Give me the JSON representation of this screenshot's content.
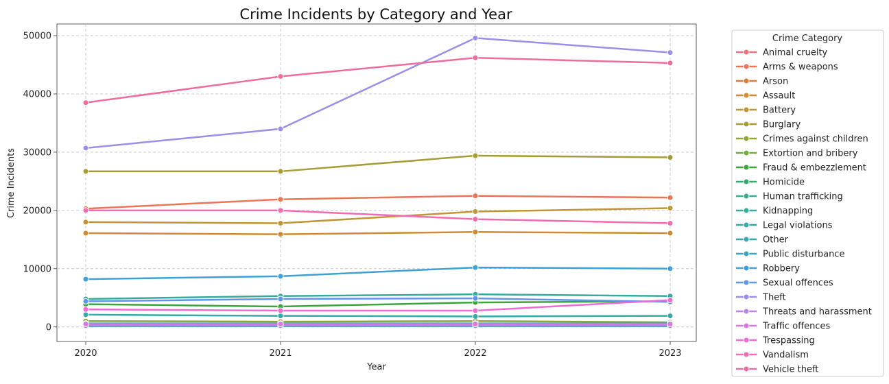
{
  "chart_data": {
    "type": "line",
    "title": "Crime Incidents by Category and Year",
    "xlabel": "Year",
    "ylabel": "Crime Incidents",
    "x": [
      "2020",
      "2021",
      "2022",
      "2023"
    ],
    "ylim": [
      -2500,
      52000
    ],
    "yticks": [
      0,
      10000,
      20000,
      30000,
      40000,
      50000
    ],
    "grid": true,
    "legend": {
      "title": "Crime Category",
      "placement": "outside-right"
    },
    "series": [
      {
        "name": "Animal cruelty",
        "color": "#f0707a",
        "values": [
          300,
          300,
          300,
          300
        ]
      },
      {
        "name": "Arms & weapons",
        "color": "#ec7454",
        "values": [
          20300,
          21900,
          22500,
          22200
        ]
      },
      {
        "name": "Arson",
        "color": "#e07a32",
        "values": [
          400,
          400,
          400,
          400
        ]
      },
      {
        "name": "Assault",
        "color": "#cf8a33",
        "values": [
          16100,
          15900,
          16300,
          16100
        ]
      },
      {
        "name": "Battery",
        "color": "#bf9633",
        "values": [
          18000,
          17800,
          19800,
          20400
        ]
      },
      {
        "name": "Burglary",
        "color": "#a59c33",
        "values": [
          26700,
          26700,
          29400,
          29100
        ]
      },
      {
        "name": "Crimes against children",
        "color": "#94a433",
        "values": [
          1000,
          900,
          1000,
          800
        ]
      },
      {
        "name": "Extortion and bribery",
        "color": "#6fae38",
        "values": [
          300,
          300,
          300,
          300
        ]
      },
      {
        "name": "Fraud & embezzlement",
        "color": "#3aa63a",
        "values": [
          3900,
          3500,
          4200,
          4400
        ]
      },
      {
        "name": "Homicide",
        "color": "#35a870",
        "values": [
          200,
          200,
          200,
          200
        ]
      },
      {
        "name": "Human trafficking",
        "color": "#36ab90",
        "values": [
          100,
          100,
          100,
          100
        ]
      },
      {
        "name": "Kidnapping",
        "color": "#37aa9e",
        "values": [
          4800,
          5300,
          5600,
          5300
        ]
      },
      {
        "name": "Legal violations",
        "color": "#37a8a8",
        "values": [
          2100,
          1900,
          1800,
          1900
        ]
      },
      {
        "name": "Other",
        "color": "#38a6b4",
        "values": [
          600,
          600,
          600,
          600
        ]
      },
      {
        "name": "Public disturbance",
        "color": "#3aa3c2",
        "values": [
          300,
          300,
          300,
          300
        ]
      },
      {
        "name": "Robbery",
        "color": "#3da1d8",
        "values": [
          8200,
          8700,
          10200,
          10000
        ]
      },
      {
        "name": "Sexual offences",
        "color": "#5e95e6",
        "values": [
          4400,
          4800,
          4900,
          4300
        ]
      },
      {
        "name": "Theft",
        "color": "#9b8deb",
        "values": [
          30700,
          34000,
          49600,
          47100
        ]
      },
      {
        "name": "Threats and harassment",
        "color": "#b883ea",
        "values": [
          200,
          200,
          200,
          200
        ]
      },
      {
        "name": "Traffic offences",
        "color": "#d877e4",
        "values": [
          500,
          500,
          500,
          500
        ]
      },
      {
        "name": "Trespassing",
        "color": "#ee6ad4",
        "values": [
          3000,
          2800,
          2800,
          4600
        ]
      },
      {
        "name": "Vandalism",
        "color": "#f06bb0",
        "values": [
          20000,
          20000,
          18500,
          17800
        ]
      },
      {
        "name": "Vehicle theft",
        "color": "#ee6c9c",
        "values": [
          38500,
          43000,
          46200,
          45300
        ]
      }
    ]
  }
}
